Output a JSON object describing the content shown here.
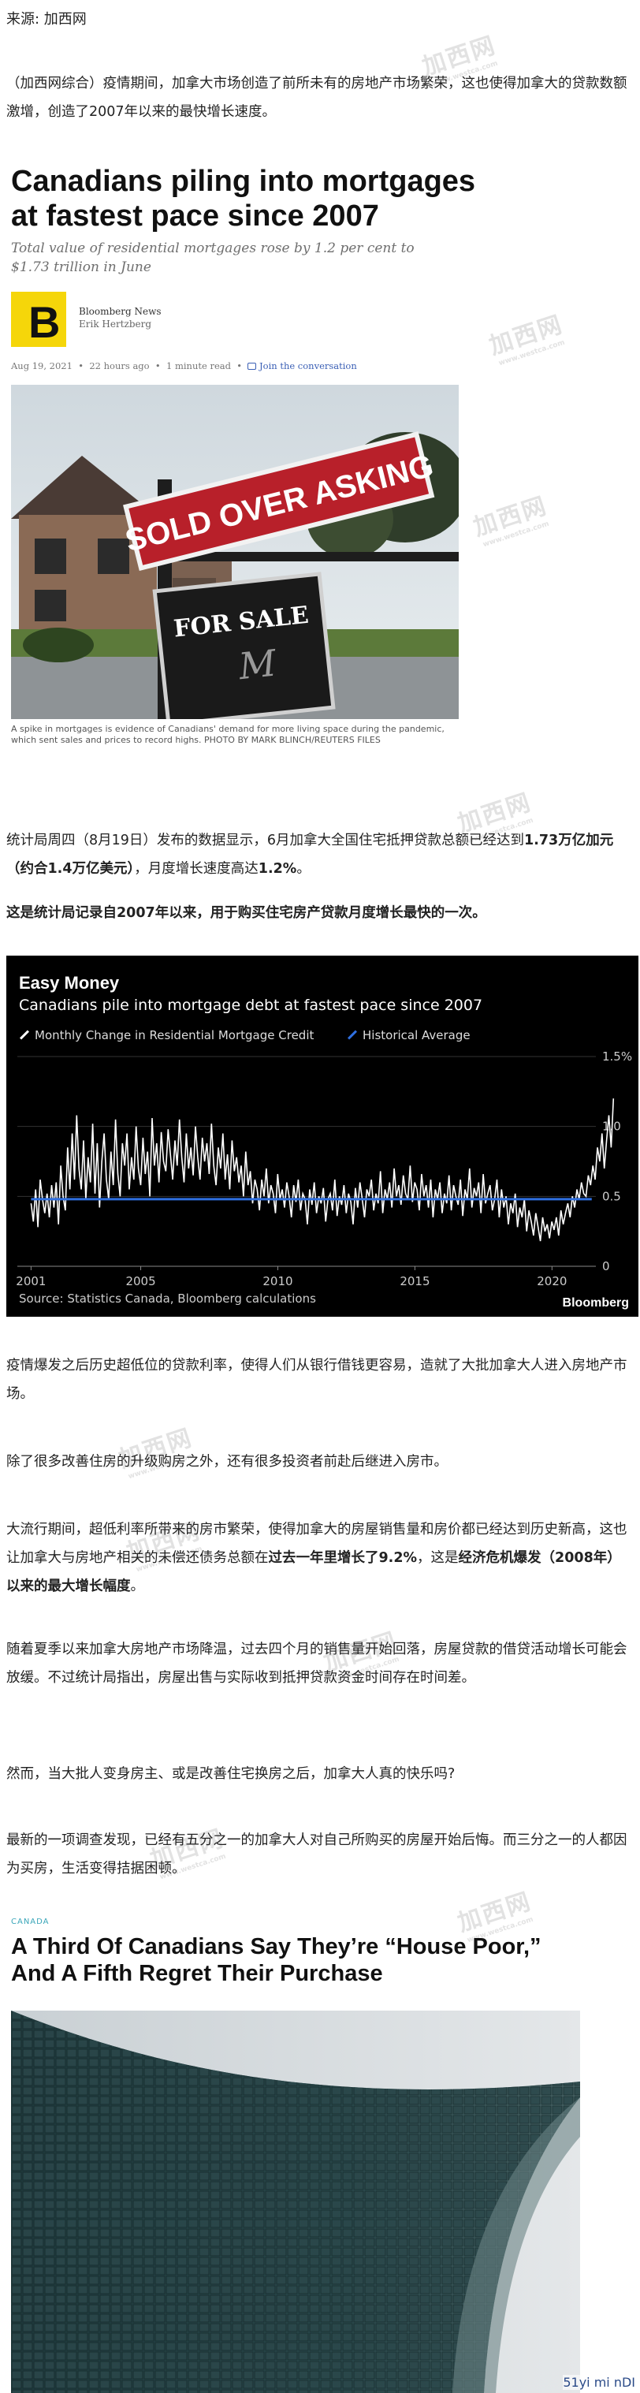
{
  "source_line": "来源: 加西网",
  "watermark": {
    "text": "加西网",
    "sub": "www.westca.com"
  },
  "intro_paragraph": "（加西网综合）疫情期间，加拿大市场创造了前所未有的房地产市场繁荣，这也使得加拿大的贷款数额激增，创造了2007年以来的最快增长速度。",
  "article1": {
    "headline": "Canadians piling into mortgages at fastest pace since 2007",
    "subheadline": "Total value of residential mortgages rose by 1.2 per cent to $1.73 trillion in June",
    "publisher": "Bloomberg News",
    "author": "Erik Hertzberg",
    "logo_letter": "B",
    "logo_color": "#f5d60a",
    "date": "Aug 19, 2021",
    "ago": "22 hours ago",
    "read_time": "1 minute read",
    "join": "Join the conversation",
    "sign_text_1": "SOLD OVER ASKING",
    "sign_text_2": "FOR SALE",
    "caption": "A spike in mortgages is evidence of Canadians' demand for more living space during the pandemic, which sent sales and prices to record highs. PHOTO BY MARK BLINCH/REUTERS FILES"
  },
  "paragraph2": {
    "part1": "统计局周四（8月19日）发布的数据显示，6月加拿大全国住宅抵押贷款总额已经达到",
    "bold1": "1.73万亿加元（约合1.4万亿美元）",
    "part2": "，月度增长速度高达",
    "bold2": "1.2%",
    "part3": "。"
  },
  "paragraph3_bold": "这是统计局记录自2007年以来，用于购买住宅房产贷款月度增长最快的一次。",
  "chart": {
    "title": "Easy Money",
    "subtitle": "Canadians pile into mortgage debt at fastest pace since 2007",
    "legend_monthly": "Monthly Change in Residential Mortgage Credit",
    "legend_avg": "Historical Average",
    "source": "Source: Statistics Canada, Bloomberg calculations",
    "brand": "Bloomberg",
    "colors": {
      "background": "#000000",
      "series": "#ffffff",
      "average": "#2f6fe0"
    }
  },
  "chart_data": {
    "type": "line",
    "title": "Easy Money",
    "subtitle": "Canadians pile into mortgage debt at fastest pace since 2007",
    "x_ticks": [
      "2001",
      "2005",
      "2010",
      "2015",
      "2020"
    ],
    "y_ticks": [
      "0",
      "0.5",
      "1.0",
      "1.5%"
    ],
    "xlim": [
      2000.5,
      2021.6
    ],
    "ylim": [
      0,
      1.5
    ],
    "series": [
      {
        "name": "Monthly Change in Residential Mortgage Credit",
        "x_start": 2001.0,
        "step": 0.0833,
        "values": [
          0.45,
          0.32,
          0.55,
          0.28,
          0.62,
          0.48,
          0.38,
          0.52,
          0.35,
          0.58,
          0.42,
          0.6,
          0.3,
          0.72,
          0.5,
          0.4,
          0.85,
          0.55,
          0.95,
          0.62,
          1.08,
          0.7,
          0.55,
          0.9,
          0.48,
          0.78,
          0.6,
          1.02,
          0.52,
          0.88,
          0.42,
          0.75,
          0.95,
          0.62,
          0.48,
          0.82,
          0.58,
          1.05,
          0.66,
          0.5,
          0.88,
          0.72,
          0.95,
          0.55,
          0.78,
          0.62,
          1.0,
          0.7,
          0.58,
          0.92,
          0.66,
          0.82,
          0.5,
          1.06,
          0.72,
          0.88,
          0.6,
          0.96,
          0.75,
          0.68,
          0.98,
          0.8,
          0.62,
          0.9,
          0.72,
          1.05,
          0.78,
          0.6,
          0.95,
          0.7,
          0.85,
          0.65,
          1.0,
          0.78,
          0.62,
          0.92,
          0.75,
          0.88,
          0.66,
          1.02,
          0.72,
          0.58,
          0.85,
          0.7,
          0.95,
          0.62,
          0.8,
          0.55,
          0.9,
          0.68,
          0.78,
          0.6,
          0.72,
          0.5,
          0.82,
          0.58,
          0.68,
          0.45,
          0.62,
          0.55,
          0.4,
          0.62,
          0.5,
          0.7,
          0.45,
          0.58,
          0.52,
          0.38,
          0.66,
          0.48,
          0.55,
          0.42,
          0.6,
          0.5,
          0.35,
          0.58,
          0.46,
          0.62,
          0.4,
          0.52,
          0.48,
          0.3,
          0.55,
          0.44,
          0.6,
          0.38,
          0.5,
          0.45,
          0.56,
          0.32,
          0.48,
          0.52,
          0.4,
          0.62,
          0.36,
          0.5,
          0.44,
          0.58,
          0.38,
          0.52,
          0.46,
          0.3,
          0.56,
          0.42,
          0.6,
          0.48,
          0.35,
          0.55,
          0.5,
          0.62,
          0.4,
          0.52,
          0.45,
          0.68,
          0.38,
          0.55,
          0.48,
          0.6,
          0.42,
          0.7,
          0.5,
          0.58,
          0.44,
          0.65,
          0.52,
          0.48,
          0.72,
          0.46,
          0.6,
          0.55,
          0.4,
          0.66,
          0.5,
          0.58,
          0.42,
          0.62,
          0.35,
          0.55,
          0.48,
          0.6,
          0.38,
          0.52,
          0.45,
          0.65,
          0.4,
          0.58,
          0.5,
          0.44,
          0.62,
          0.36,
          0.55,
          0.48,
          0.7,
          0.42,
          0.56,
          0.5,
          0.6,
          0.38,
          0.66,
          0.45,
          0.52,
          0.58,
          0.4,
          0.48,
          0.62,
          0.35,
          0.55,
          0.42,
          0.5,
          0.3,
          0.45,
          0.38,
          0.52,
          0.28,
          0.42,
          0.35,
          0.48,
          0.25,
          0.4,
          0.32,
          0.22,
          0.38,
          0.28,
          0.18,
          0.35,
          0.25,
          0.3,
          0.2,
          0.32,
          0.26,
          0.35,
          0.22,
          0.4,
          0.3,
          0.38,
          0.45,
          0.35,
          0.5,
          0.42,
          0.55,
          0.48,
          0.6,
          0.52,
          0.5,
          0.65,
          0.58,
          0.72,
          0.62,
          0.85,
          0.75,
          0.95,
          0.7,
          0.9,
          1.08,
          0.85,
          1.2
        ]
      },
      {
        "name": "Historical Average",
        "x": [
          2001.0,
          2021.45
        ],
        "values": [
          0.48,
          0.48
        ]
      }
    ]
  },
  "paragraph4": "疫情爆发之后历史超低位的贷款利率，使得人们从银行借钱更容易，造就了大批加拿大人进入房地产市场。",
  "paragraph5": "除了很多改善住房的升级购房之外，还有很多投资者前赴后继进入房市。",
  "paragraph6": {
    "part1": "大流行期间，超低利率所带来的房市繁荣，使得加拿大的房屋销售量和房价都已经达到历史新高，这也让加拿大与房地产相关的未偿还债务总额在",
    "bold1": "过去一年里增长了9.2%",
    "part2": "，这是",
    "bold2": "经济危机爆发（2008年）以来的最大增长幅度",
    "part3": "。"
  },
  "paragraph7": "随着夏季以来加拿大房地产市场降温，过去四个月的销售量开始回落，房屋贷款的借贷活动增长可能会放缓。不过统计局指出，房屋出售与实际收到抵押贷款资金时间存在时间差。",
  "paragraph8": "然而，当大批人变身房主、或是改善住宅换房之后，加拿大人真的快乐吗?",
  "paragraph9": "最新的一项调查发现，已经有五分之一的加拿大人对自己所购买的房屋开始后悔。而三分之一的人都因为买房，生活变得拮据困顿。",
  "article2": {
    "category": "CANADA",
    "headline": "A Third Of Canadians Say They’re “House Poor,” And A Fifth Regret Their Purchase"
  },
  "footer_watermark": "51yi mi nDI"
}
